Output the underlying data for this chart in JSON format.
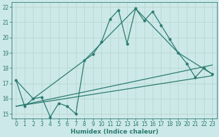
{
  "xlabel": "Humidex (Indice chaleur)",
  "bg_color": "#cce8e8",
  "grid_color": "#c0dada",
  "line_color": "#2a7a70",
  "xlim": [
    -0.5,
    23.5
  ],
  "ylim": [
    14.7,
    22.3
  ],
  "yticks": [
    15,
    16,
    17,
    18,
    19,
    20,
    21,
    22
  ],
  "xticks": [
    0,
    1,
    2,
    3,
    4,
    5,
    6,
    7,
    8,
    9,
    10,
    11,
    12,
    13,
    14,
    15,
    16,
    17,
    18,
    19,
    20,
    21,
    22,
    23
  ],
  "line_main_x": [
    0,
    1,
    2,
    3,
    4,
    5,
    6,
    7,
    8,
    9,
    10,
    11,
    12,
    13,
    14,
    15,
    16,
    17,
    18,
    19,
    20,
    21,
    22,
    23
  ],
  "line_main_y": [
    17.2,
    15.5,
    16.0,
    16.1,
    14.8,
    15.7,
    15.5,
    15.0,
    18.5,
    18.9,
    19.7,
    21.2,
    21.8,
    19.6,
    21.9,
    21.1,
    21.7,
    20.8,
    19.9,
    19.0,
    18.3,
    17.4,
    18.0,
    17.6
  ],
  "line_connect_x": [
    0,
    2,
    8,
    14,
    19,
    23
  ],
  "line_connect_y": [
    17.2,
    16.0,
    18.5,
    21.9,
    19.0,
    17.6
  ],
  "line_trend1_x": [
    0,
    23
  ],
  "line_trend1_y": [
    15.5,
    18.2
  ],
  "line_trend2_x": [
    0,
    23
  ],
  "line_trend2_y": [
    15.5,
    17.5
  ]
}
